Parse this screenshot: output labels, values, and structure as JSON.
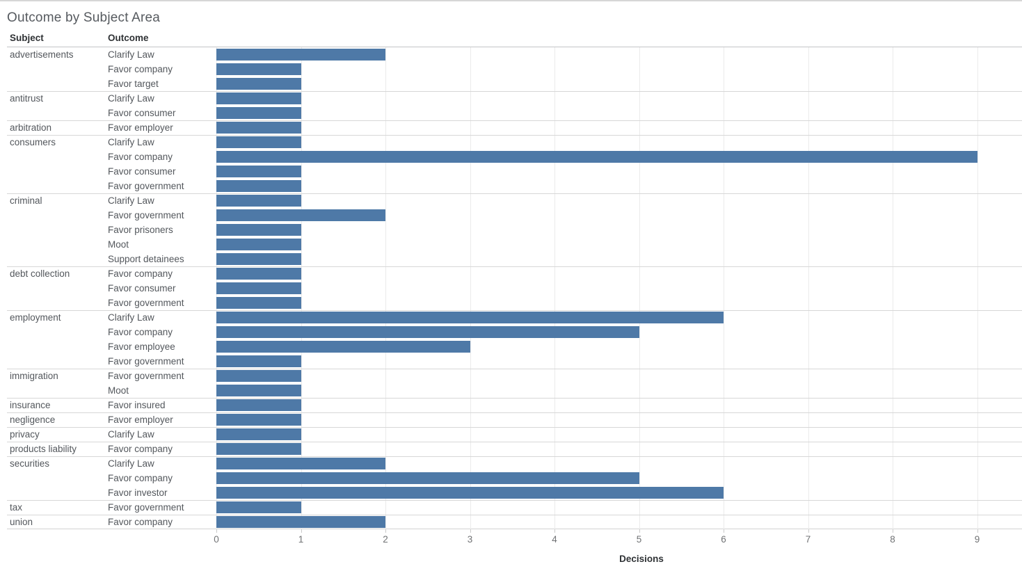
{
  "title": "Outcome by Subject Area",
  "columns": {
    "subject": "Subject",
    "outcome": "Outcome"
  },
  "axis": {
    "label": "Decisions",
    "ticks": [
      "0",
      "1",
      "2",
      "3",
      "4",
      "5",
      "6",
      "7",
      "8",
      "9"
    ]
  },
  "colors": {
    "bar": "#4e79a7",
    "gridline": "#ebebeb",
    "divider": "#d7d7d7"
  },
  "chart_data": {
    "type": "bar",
    "orientation": "horizontal",
    "title": "Outcome by Subject Area",
    "xlabel": "Decisions",
    "xlim": [
      0,
      9.5
    ],
    "grid": true,
    "groups": [
      {
        "subject": "advertisements",
        "items": [
          {
            "outcome": "Clarify Law",
            "value": 2
          },
          {
            "outcome": "Favor company",
            "value": 1
          },
          {
            "outcome": "Favor target",
            "value": 1
          }
        ]
      },
      {
        "subject": "antitrust",
        "items": [
          {
            "outcome": "Clarify Law",
            "value": 1
          },
          {
            "outcome": "Favor consumer",
            "value": 1
          }
        ]
      },
      {
        "subject": "arbitration",
        "items": [
          {
            "outcome": "Favor employer",
            "value": 1
          }
        ]
      },
      {
        "subject": "consumers",
        "items": [
          {
            "outcome": "Clarify Law",
            "value": 1
          },
          {
            "outcome": "Favor company",
            "value": 9
          },
          {
            "outcome": "Favor consumer",
            "value": 1
          },
          {
            "outcome": "Favor government",
            "value": 1
          }
        ]
      },
      {
        "subject": "criminal",
        "items": [
          {
            "outcome": "Clarify Law",
            "value": 1
          },
          {
            "outcome": "Favor government",
            "value": 2
          },
          {
            "outcome": "Favor prisoners",
            "value": 1
          },
          {
            "outcome": "Moot",
            "value": 1
          },
          {
            "outcome": "Support detainees",
            "value": 1
          }
        ]
      },
      {
        "subject": "debt collection",
        "items": [
          {
            "outcome": "Favor company",
            "value": 1
          },
          {
            "outcome": "Favor consumer",
            "value": 1
          },
          {
            "outcome": "Favor government",
            "value": 1
          }
        ]
      },
      {
        "subject": "employment",
        "items": [
          {
            "outcome": "Clarify Law",
            "value": 6
          },
          {
            "outcome": "Favor company",
            "value": 5
          },
          {
            "outcome": "Favor employee",
            "value": 3
          },
          {
            "outcome": "Favor government",
            "value": 1
          }
        ]
      },
      {
        "subject": "immigration",
        "items": [
          {
            "outcome": "Favor government",
            "value": 1
          },
          {
            "outcome": "Moot",
            "value": 1
          }
        ]
      },
      {
        "subject": "insurance",
        "items": [
          {
            "outcome": "Favor insured",
            "value": 1
          }
        ]
      },
      {
        "subject": "negligence",
        "items": [
          {
            "outcome": "Favor employer",
            "value": 1
          }
        ]
      },
      {
        "subject": "privacy",
        "items": [
          {
            "outcome": "Clarify Law",
            "value": 1
          }
        ]
      },
      {
        "subject": "products liability",
        "items": [
          {
            "outcome": "Favor company",
            "value": 1
          }
        ]
      },
      {
        "subject": "securities",
        "items": [
          {
            "outcome": "Clarify Law",
            "value": 2
          },
          {
            "outcome": "Favor company",
            "value": 5
          },
          {
            "outcome": "Favor investor",
            "value": 6
          }
        ]
      },
      {
        "subject": "tax",
        "items": [
          {
            "outcome": "Favor government",
            "value": 1
          }
        ]
      },
      {
        "subject": "union",
        "items": [
          {
            "outcome": "Favor company",
            "value": 2
          }
        ]
      }
    ]
  }
}
